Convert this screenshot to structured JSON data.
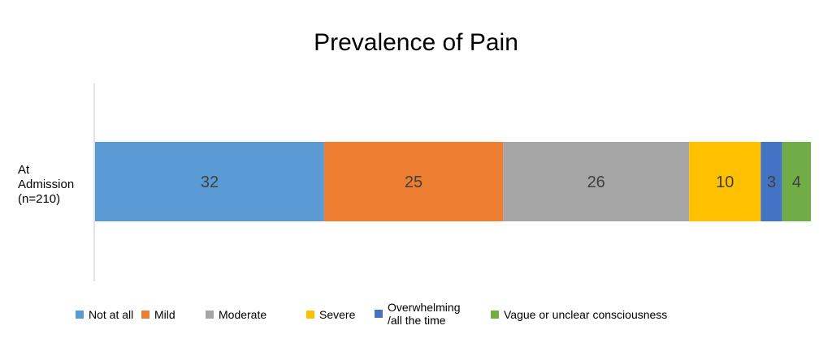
{
  "chart_data": {
    "type": "bar",
    "orientation": "horizontal",
    "stacked": true,
    "title": "Prevalence of Pain",
    "categories": [
      "At Admission (n=210)"
    ],
    "category_label_lines": [
      "At",
      "Admission",
      "(n=210)"
    ],
    "series": [
      {
        "name": "Not at all",
        "values": [
          32
        ],
        "color": "#5B9BD5"
      },
      {
        "name": "Mild",
        "values": [
          25
        ],
        "color": "#ED7D31"
      },
      {
        "name": "Moderate",
        "values": [
          26
        ],
        "color": "#A5A5A5"
      },
      {
        "name": "Severe",
        "values": [
          10
        ],
        "color": "#FFC000"
      },
      {
        "name": "Overwhelming /all the time",
        "name_lines": [
          "Overwhelming",
          "/all the time"
        ],
        "values": [
          3
        ],
        "color": "#4472C4"
      },
      {
        "name": "Vague or unclear consciousness",
        "values": [
          4
        ],
        "color": "#70AD47"
      }
    ],
    "xlim": [
      0,
      100
    ],
    "legend_position": "bottom",
    "grid": false
  }
}
